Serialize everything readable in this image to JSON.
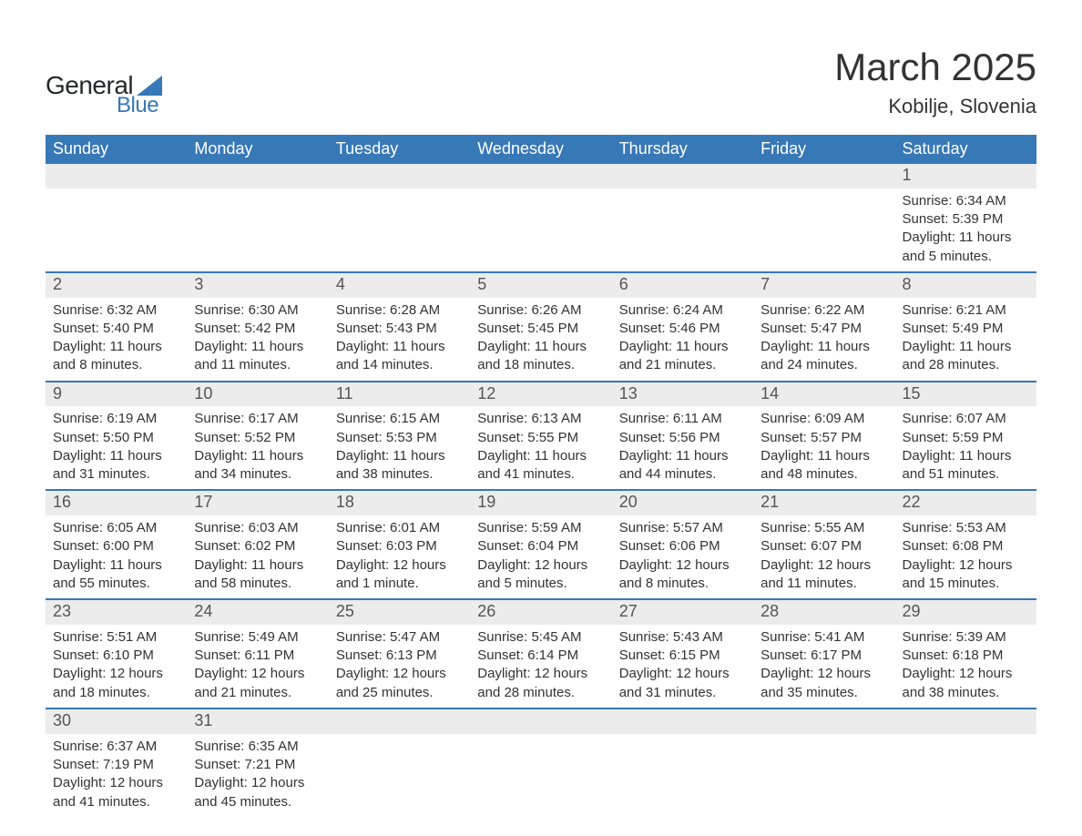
{
  "logo": {
    "text1": "General",
    "text2": "Blue",
    "tri_color": "#3778b7",
    "text_color": "#23282b"
  },
  "title": "March 2025",
  "location": "Kobilje, Slovenia",
  "colors": {
    "header_bg": "#3778b7",
    "header_text": "#ffffff",
    "daynum_bg": "#ececec",
    "row_border": "#3778b7",
    "body_text": "#333333"
  },
  "fonts": {
    "title_size": 42,
    "location_size": 22,
    "dayheader_size": 18,
    "daynum_size": 18,
    "detail_size": 15
  },
  "day_headers": [
    "Sunday",
    "Monday",
    "Tuesday",
    "Wednesday",
    "Thursday",
    "Friday",
    "Saturday"
  ],
  "weeks": [
    [
      null,
      null,
      null,
      null,
      null,
      null,
      {
        "n": "1",
        "sunrise": "Sunrise: 6:34 AM",
        "sunset": "Sunset: 5:39 PM",
        "daylight": "Daylight: 11 hours and 5 minutes."
      }
    ],
    [
      {
        "n": "2",
        "sunrise": "Sunrise: 6:32 AM",
        "sunset": "Sunset: 5:40 PM",
        "daylight": "Daylight: 11 hours and 8 minutes."
      },
      {
        "n": "3",
        "sunrise": "Sunrise: 6:30 AM",
        "sunset": "Sunset: 5:42 PM",
        "daylight": "Daylight: 11 hours and 11 minutes."
      },
      {
        "n": "4",
        "sunrise": "Sunrise: 6:28 AM",
        "sunset": "Sunset: 5:43 PM",
        "daylight": "Daylight: 11 hours and 14 minutes."
      },
      {
        "n": "5",
        "sunrise": "Sunrise: 6:26 AM",
        "sunset": "Sunset: 5:45 PM",
        "daylight": "Daylight: 11 hours and 18 minutes."
      },
      {
        "n": "6",
        "sunrise": "Sunrise: 6:24 AM",
        "sunset": "Sunset: 5:46 PM",
        "daylight": "Daylight: 11 hours and 21 minutes."
      },
      {
        "n": "7",
        "sunrise": "Sunrise: 6:22 AM",
        "sunset": "Sunset: 5:47 PM",
        "daylight": "Daylight: 11 hours and 24 minutes."
      },
      {
        "n": "8",
        "sunrise": "Sunrise: 6:21 AM",
        "sunset": "Sunset: 5:49 PM",
        "daylight": "Daylight: 11 hours and 28 minutes."
      }
    ],
    [
      {
        "n": "9",
        "sunrise": "Sunrise: 6:19 AM",
        "sunset": "Sunset: 5:50 PM",
        "daylight": "Daylight: 11 hours and 31 minutes."
      },
      {
        "n": "10",
        "sunrise": "Sunrise: 6:17 AM",
        "sunset": "Sunset: 5:52 PM",
        "daylight": "Daylight: 11 hours and 34 minutes."
      },
      {
        "n": "11",
        "sunrise": "Sunrise: 6:15 AM",
        "sunset": "Sunset: 5:53 PM",
        "daylight": "Daylight: 11 hours and 38 minutes."
      },
      {
        "n": "12",
        "sunrise": "Sunrise: 6:13 AM",
        "sunset": "Sunset: 5:55 PM",
        "daylight": "Daylight: 11 hours and 41 minutes."
      },
      {
        "n": "13",
        "sunrise": "Sunrise: 6:11 AM",
        "sunset": "Sunset: 5:56 PM",
        "daylight": "Daylight: 11 hours and 44 minutes."
      },
      {
        "n": "14",
        "sunrise": "Sunrise: 6:09 AM",
        "sunset": "Sunset: 5:57 PM",
        "daylight": "Daylight: 11 hours and 48 minutes."
      },
      {
        "n": "15",
        "sunrise": "Sunrise: 6:07 AM",
        "sunset": "Sunset: 5:59 PM",
        "daylight": "Daylight: 11 hours and 51 minutes."
      }
    ],
    [
      {
        "n": "16",
        "sunrise": "Sunrise: 6:05 AM",
        "sunset": "Sunset: 6:00 PM",
        "daylight": "Daylight: 11 hours and 55 minutes."
      },
      {
        "n": "17",
        "sunrise": "Sunrise: 6:03 AM",
        "sunset": "Sunset: 6:02 PM",
        "daylight": "Daylight: 11 hours and 58 minutes."
      },
      {
        "n": "18",
        "sunrise": "Sunrise: 6:01 AM",
        "sunset": "Sunset: 6:03 PM",
        "daylight": "Daylight: 12 hours and 1 minute."
      },
      {
        "n": "19",
        "sunrise": "Sunrise: 5:59 AM",
        "sunset": "Sunset: 6:04 PM",
        "daylight": "Daylight: 12 hours and 5 minutes."
      },
      {
        "n": "20",
        "sunrise": "Sunrise: 5:57 AM",
        "sunset": "Sunset: 6:06 PM",
        "daylight": "Daylight: 12 hours and 8 minutes."
      },
      {
        "n": "21",
        "sunrise": "Sunrise: 5:55 AM",
        "sunset": "Sunset: 6:07 PM",
        "daylight": "Daylight: 12 hours and 11 minutes."
      },
      {
        "n": "22",
        "sunrise": "Sunrise: 5:53 AM",
        "sunset": "Sunset: 6:08 PM",
        "daylight": "Daylight: 12 hours and 15 minutes."
      }
    ],
    [
      {
        "n": "23",
        "sunrise": "Sunrise: 5:51 AM",
        "sunset": "Sunset: 6:10 PM",
        "daylight": "Daylight: 12 hours and 18 minutes."
      },
      {
        "n": "24",
        "sunrise": "Sunrise: 5:49 AM",
        "sunset": "Sunset: 6:11 PM",
        "daylight": "Daylight: 12 hours and 21 minutes."
      },
      {
        "n": "25",
        "sunrise": "Sunrise: 5:47 AM",
        "sunset": "Sunset: 6:13 PM",
        "daylight": "Daylight: 12 hours and 25 minutes."
      },
      {
        "n": "26",
        "sunrise": "Sunrise: 5:45 AM",
        "sunset": "Sunset: 6:14 PM",
        "daylight": "Daylight: 12 hours and 28 minutes."
      },
      {
        "n": "27",
        "sunrise": "Sunrise: 5:43 AM",
        "sunset": "Sunset: 6:15 PM",
        "daylight": "Daylight: 12 hours and 31 minutes."
      },
      {
        "n": "28",
        "sunrise": "Sunrise: 5:41 AM",
        "sunset": "Sunset: 6:17 PM",
        "daylight": "Daylight: 12 hours and 35 minutes."
      },
      {
        "n": "29",
        "sunrise": "Sunrise: 5:39 AM",
        "sunset": "Sunset: 6:18 PM",
        "daylight": "Daylight: 12 hours and 38 minutes."
      }
    ],
    [
      {
        "n": "30",
        "sunrise": "Sunrise: 6:37 AM",
        "sunset": "Sunset: 7:19 PM",
        "daylight": "Daylight: 12 hours and 41 minutes."
      },
      {
        "n": "31",
        "sunrise": "Sunrise: 6:35 AM",
        "sunset": "Sunset: 7:21 PM",
        "daylight": "Daylight: 12 hours and 45 minutes."
      },
      null,
      null,
      null,
      null,
      null
    ]
  ]
}
